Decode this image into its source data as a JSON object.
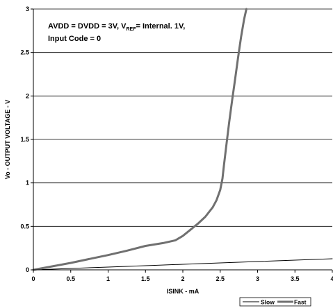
{
  "chart_data": {
    "type": "line",
    "xlabel": "ISINK - mA",
    "ylabel": "Vo - OUTPUT VOLTAGE - V",
    "xlim": [
      0,
      4
    ],
    "ylim": [
      0,
      3
    ],
    "x_ticks": [
      "0",
      "0.5",
      "1",
      "1.5",
      "2",
      "2.5",
      "3",
      "3.5",
      "4"
    ],
    "y_ticks": [
      "0",
      "0.5",
      "1",
      "1.5",
      "2",
      "2.5",
      "3"
    ],
    "grid": "horizontal",
    "annotation": {
      "line1_pre": "AVDD = DVDD = 3V, V",
      "line1_sub": "REF",
      "line1_post": "= Internal. 1V,",
      "line2": "Input Code = 0"
    },
    "legend_position": "bottom-right, below plot",
    "series": [
      {
        "name": "Slow",
        "color": "#000000",
        "x": [
          0,
          0.5,
          1,
          1.5,
          2,
          2.5,
          3,
          3.5,
          4
        ],
        "y": [
          0,
          0.016,
          0.032,
          0.048,
          0.064,
          0.08,
          0.096,
          0.112,
          0.128
        ]
      },
      {
        "name": "Fast",
        "color": "#707070",
        "x": [
          0,
          0.25,
          0.5,
          0.75,
          1,
          1.25,
          1.5,
          1.75,
          1.9,
          2.0,
          2.1,
          2.2,
          2.3,
          2.4,
          2.45,
          2.5,
          2.53,
          2.55,
          2.58,
          2.62,
          2.66,
          2.7,
          2.74,
          2.78,
          2.82,
          2.85
        ],
        "y": [
          0,
          0.04,
          0.08,
          0.125,
          0.17,
          0.22,
          0.275,
          0.31,
          0.34,
          0.39,
          0.46,
          0.53,
          0.61,
          0.72,
          0.8,
          0.92,
          1.05,
          1.2,
          1.42,
          1.7,
          1.95,
          2.2,
          2.45,
          2.68,
          2.88,
          3.0
        ]
      }
    ]
  }
}
